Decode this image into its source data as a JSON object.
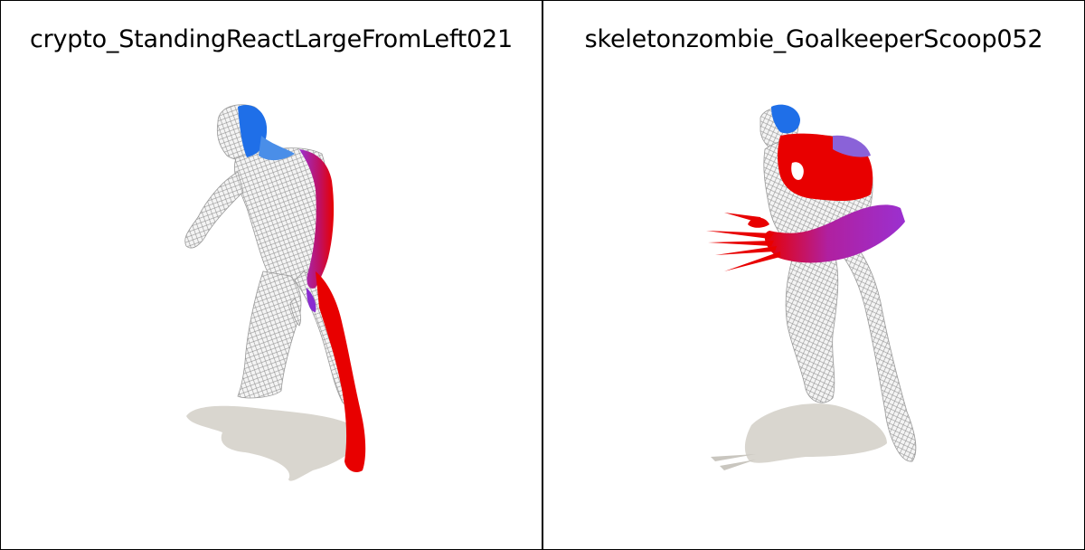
{
  "panels": [
    {
      "title": "crypto_StandingReactLargeFromLeft021"
    },
    {
      "title": "skeletonzombie_GoalkeeperScoop052"
    }
  ],
  "colors": {
    "background": "#ffffff",
    "border": "#000000",
    "mesh_fill": "#f2f2f2",
    "mesh_stroke": "#9a9a9a",
    "shadow": "#d8d5cf",
    "red": "#e80000",
    "purple": "#8a2bd0",
    "blue": "#1f6fe8"
  }
}
